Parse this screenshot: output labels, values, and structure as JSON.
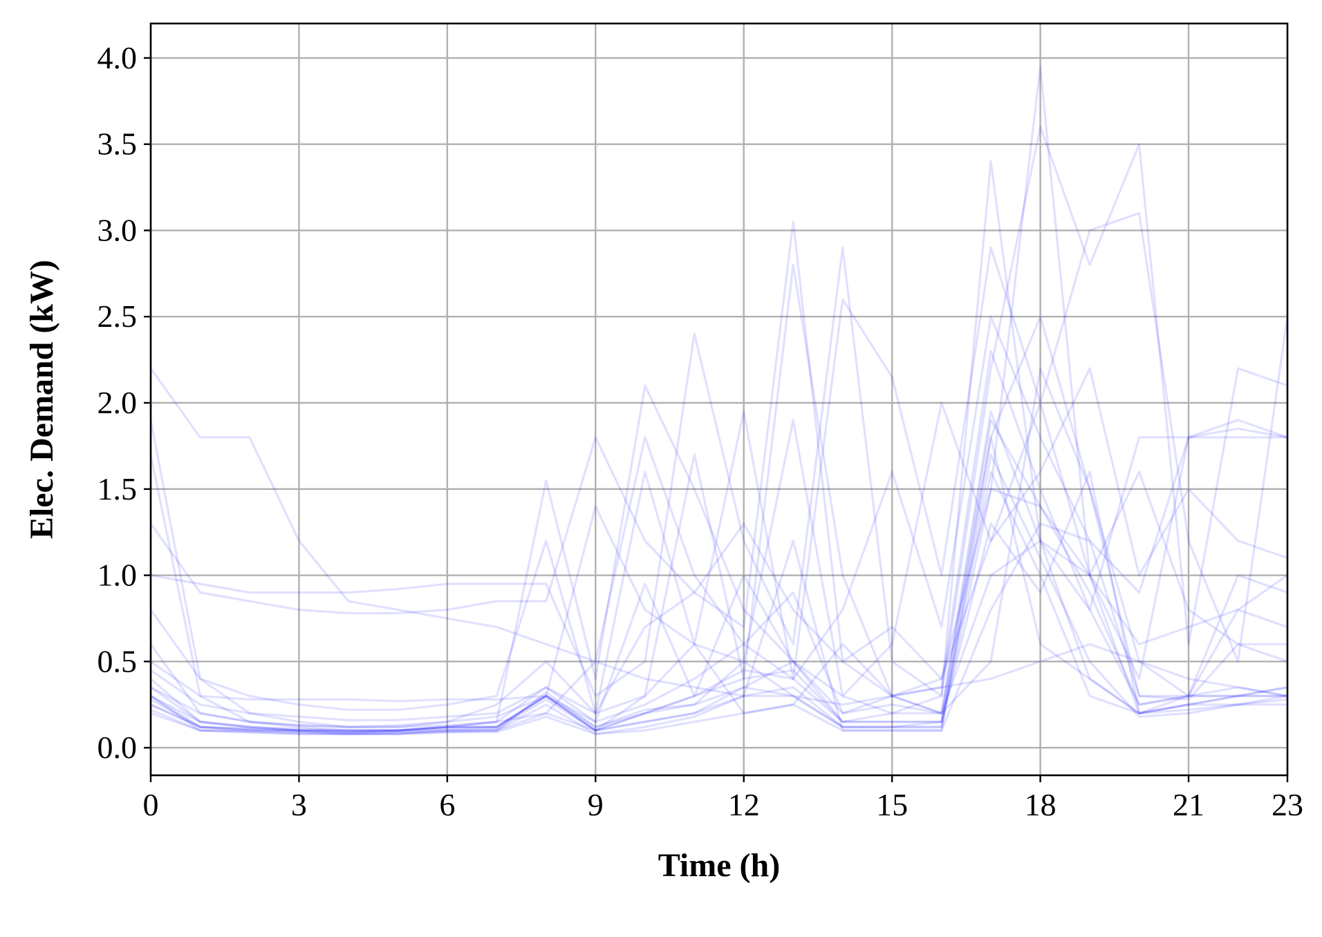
{
  "chart_data": {
    "type": "line",
    "xlabel": "Time (h)",
    "ylabel": "Elec. Demand (kW)",
    "xlim": [
      0,
      23
    ],
    "ylim": [
      -0.16,
      4.2
    ],
    "xticks": [
      0,
      3,
      6,
      9,
      12,
      15,
      18,
      21,
      23
    ],
    "yticks": [
      0.0,
      0.5,
      1.0,
      1.5,
      2.0,
      2.5,
      3.0,
      3.5,
      4.0
    ],
    "ytick_labels": [
      "0.0",
      "0.5",
      "1.0",
      "1.5",
      "2.0",
      "2.5",
      "3.0",
      "3.5",
      "4.0"
    ],
    "grid": true,
    "line_color": "#0000ff",
    "line_opacity": 0.12,
    "x": [
      0,
      1,
      2,
      3,
      4,
      5,
      6,
      7,
      8,
      9,
      10,
      11,
      12,
      13,
      14,
      15,
      16,
      17,
      18,
      19,
      20,
      21,
      22,
      23
    ],
    "series": [
      {
        "values": [
          2.2,
          1.8,
          1.8,
          1.2,
          0.85,
          0.8,
          0.75,
          0.7,
          0.6,
          0.5,
          0.4,
          0.35,
          0.3,
          0.3,
          0.25,
          0.3,
          0.35,
          0.4,
          0.5,
          0.6,
          0.5,
          0.4,
          0.35,
          0.3
        ]
      },
      {
        "values": [
          1.7,
          0.3,
          0.15,
          0.12,
          0.1,
          0.1,
          0.12,
          0.15,
          1.55,
          0.4,
          2.1,
          1.5,
          0.8,
          0.5,
          0.3,
          0.2,
          0.3,
          3.4,
          1.2,
          1.0,
          1.6,
          0.8,
          0.6,
          0.5
        ]
      },
      {
        "values": [
          1.3,
          0.9,
          0.85,
          0.8,
          0.78,
          0.78,
          0.8,
          0.85,
          0.85,
          1.8,
          1.2,
          0.9,
          0.7,
          3.05,
          0.5,
          0.3,
          0.4,
          1.5,
          3.95,
          1.0,
          0.4,
          1.8,
          1.8,
          1.8
        ]
      },
      {
        "values": [
          1.0,
          0.95,
          0.9,
          0.9,
          0.9,
          0.92,
          0.95,
          0.95,
          0.95,
          0.3,
          0.5,
          2.4,
          1.2,
          0.6,
          2.9,
          0.5,
          0.3,
          2.2,
          3.6,
          2.8,
          3.5,
          0.6,
          2.2,
          2.1
        ]
      },
      {
        "values": [
          0.8,
          0.4,
          0.3,
          0.25,
          0.22,
          0.22,
          0.25,
          0.3,
          1.2,
          0.2,
          1.6,
          0.6,
          1.95,
          0.4,
          2.6,
          2.15,
          1.0,
          2.9,
          2.0,
          3.0,
          3.1,
          1.2,
          0.5,
          2.5
        ]
      },
      {
        "values": [
          0.6,
          0.2,
          0.15,
          0.13,
          0.12,
          0.12,
          0.15,
          0.25,
          0.5,
          0.2,
          0.3,
          1.7,
          0.4,
          2.8,
          1.0,
          0.3,
          0.2,
          1.8,
          2.5,
          1.5,
          0.3,
          0.3,
          1.0,
          0.9
        ]
      },
      {
        "values": [
          0.5,
          0.3,
          0.28,
          0.28,
          0.28,
          0.27,
          0.28,
          0.28,
          0.3,
          1.4,
          0.8,
          0.6,
          0.5,
          1.9,
          0.3,
          0.6,
          2.0,
          1.2,
          1.6,
          2.2,
          1.0,
          1.5,
          1.2,
          1.1
        ]
      },
      {
        "values": [
          0.4,
          0.15,
          0.12,
          0.1,
          0.1,
          0.1,
          0.12,
          0.15,
          0.35,
          0.15,
          0.95,
          0.3,
          1.0,
          0.5,
          0.2,
          0.25,
          0.2,
          1.95,
          1.2,
          0.4,
          0.2,
          0.3,
          0.35,
          0.3
        ]
      },
      {
        "values": [
          0.35,
          0.15,
          0.12,
          0.1,
          0.09,
          0.1,
          0.12,
          0.12,
          0.3,
          0.1,
          0.2,
          0.3,
          0.4,
          0.45,
          0.15,
          0.15,
          0.15,
          1.6,
          1.0,
          0.3,
          0.2,
          0.25,
          0.3,
          0.3
        ]
      },
      {
        "values": [
          0.3,
          0.12,
          0.1,
          0.09,
          0.08,
          0.09,
          0.1,
          0.1,
          0.32,
          0.12,
          0.22,
          0.25,
          0.5,
          0.3,
          0.12,
          0.12,
          0.15,
          1.3,
          0.9,
          1.6,
          0.2,
          0.25,
          0.25,
          0.28
        ]
      },
      {
        "values": [
          0.25,
          0.12,
          0.11,
          0.1,
          0.09,
          0.1,
          0.12,
          0.12,
          0.3,
          0.1,
          0.15,
          0.2,
          0.35,
          0.5,
          0.15,
          0.2,
          0.2,
          1.0,
          1.2,
          0.8,
          0.25,
          0.3,
          0.3,
          0.35
        ]
      },
      {
        "values": [
          0.22,
          0.1,
          0.09,
          0.08,
          0.08,
          0.08,
          0.1,
          0.1,
          0.25,
          0.08,
          0.12,
          0.18,
          0.3,
          1.2,
          0.1,
          0.1,
          0.1,
          1.8,
          0.6,
          0.4,
          0.2,
          0.22,
          0.25,
          0.25
        ]
      },
      {
        "values": [
          0.3,
          0.1,
          0.1,
          0.09,
          0.08,
          0.08,
          0.09,
          0.1,
          0.2,
          0.1,
          0.3,
          0.6,
          0.2,
          0.25,
          0.6,
          0.3,
          0.2,
          0.5,
          2.2,
          1.5,
          0.5,
          0.3,
          0.8,
          0.7
        ]
      },
      {
        "values": [
          1.9,
          0.4,
          0.2,
          0.15,
          0.12,
          0.12,
          0.13,
          0.15,
          0.2,
          0.5,
          1.8,
          1.0,
          0.6,
          0.4,
          0.8,
          1.6,
          0.7,
          2.5,
          1.8,
          1.2,
          0.9,
          1.8,
          1.85,
          1.8
        ]
      },
      {
        "values": [
          0.35,
          0.2,
          0.15,
          0.13,
          0.12,
          0.13,
          0.15,
          0.18,
          0.3,
          0.12,
          0.2,
          0.25,
          0.35,
          0.3,
          0.12,
          0.12,
          0.12,
          1.5,
          1.4,
          1.0,
          0.2,
          0.25,
          0.3,
          0.35
        ]
      },
      {
        "values": [
          0.28,
          0.12,
          0.1,
          0.1,
          0.09,
          0.09,
          0.1,
          0.11,
          0.28,
          0.1,
          0.15,
          0.2,
          0.3,
          0.35,
          0.12,
          0.12,
          0.12,
          1.7,
          1.1,
          0.5,
          0.18,
          0.2,
          0.25,
          0.3
        ]
      },
      {
        "values": [
          0.2,
          0.1,
          0.09,
          0.08,
          0.08,
          0.08,
          0.09,
          0.09,
          0.18,
          0.08,
          0.1,
          0.15,
          0.2,
          0.25,
          0.1,
          0.1,
          0.1,
          0.8,
          1.3,
          1.2,
          0.3,
          0.28,
          0.6,
          0.6
        ]
      },
      {
        "values": [
          0.45,
          0.25,
          0.2,
          0.18,
          0.16,
          0.16,
          0.18,
          0.2,
          0.35,
          0.2,
          0.7,
          0.9,
          1.3,
          0.8,
          0.5,
          0.7,
          0.4,
          1.2,
          2.0,
          1.0,
          0.6,
          0.7,
          0.8,
          1.0
        ]
      },
      {
        "values": [
          0.25,
          0.12,
          0.11,
          0.1,
          0.1,
          0.1,
          0.11,
          0.12,
          0.3,
          0.15,
          0.25,
          0.4,
          0.6,
          0.9,
          0.2,
          0.3,
          0.35,
          2.3,
          1.5,
          0.8,
          1.8,
          1.8,
          1.9,
          1.8
        ]
      },
      {
        "values": [
          0.3,
          0.15,
          0.12,
          0.11,
          0.1,
          0.1,
          0.12,
          0.12,
          0.3,
          0.1,
          0.2,
          0.3,
          0.45,
          0.4,
          0.15,
          0.15,
          0.15,
          1.9,
          1.4,
          0.9,
          0.25,
          0.3,
          0.3,
          0.3
        ]
      }
    ]
  }
}
